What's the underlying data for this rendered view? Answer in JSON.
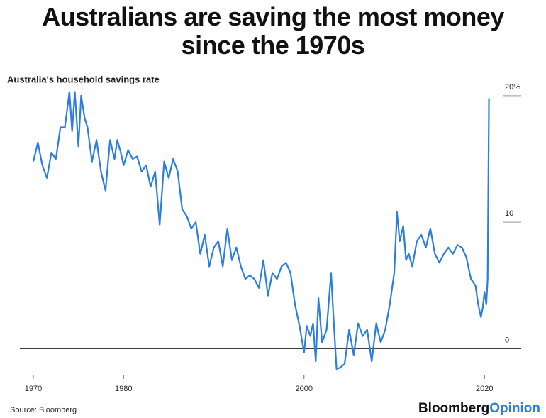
{
  "chart_data": {
    "type": "line",
    "title": "Australians are saving the most money since the 1970s",
    "subtitle": "Australia's household savings rate",
    "source": "Source: Bloomberg",
    "logo": [
      "Bloomberg",
      "Opinion"
    ],
    "xlim": [
      1970,
      2021
    ],
    "xticks": [
      1970,
      1980,
      2000,
      2020
    ],
    "ylim": [
      -2,
      20.5
    ],
    "yticks": [
      0,
      10,
      {
        "value": 20,
        "label": "20%"
      }
    ],
    "grid": true,
    "series": [
      {
        "name": "Australia's household savings rate",
        "color": "#2a7de1",
        "x": [
          1970,
          1970.5,
          1971,
          1971.5,
          1972,
          1972.5,
          1973,
          1973.5,
          1974,
          1974.3,
          1974.6,
          1975,
          1975.3,
          1975.7,
          1976,
          1976.5,
          1977,
          1977.5,
          1978,
          1978.5,
          1979,
          1979.3,
          1979.7,
          1980,
          1980.5,
          1981,
          1981.5,
          1982,
          1982.5,
          1983,
          1983.5,
          1984,
          1984.5,
          1985,
          1985.5,
          1986,
          1986.5,
          1987,
          1987.5,
          1988,
          1988.5,
          1989,
          1989.5,
          1990,
          1990.5,
          1991,
          1991.5,
          1992,
          1992.5,
          1993,
          1993.5,
          1994,
          1994.5,
          1995,
          1995.5,
          1996,
          1996.5,
          1997,
          1997.5,
          1998,
          1998.5,
          1999,
          1999.5,
          2000,
          2000.3,
          2000.7,
          2001,
          2001.3,
          2001.6,
          2002,
          2002.5,
          2003,
          2003.3,
          2003.6,
          2004,
          2004.5,
          2005,
          2005.5,
          2006,
          2006.5,
          2007,
          2007.5,
          2008,
          2008.5,
          2009,
          2009.5,
          2010,
          2010.3,
          2010.6,
          2011,
          2011.3,
          2011.6,
          2012,
          2012.5,
          2013,
          2013.5,
          2014,
          2014.5,
          2015,
          2015.5,
          2016,
          2016.5,
          2017,
          2017.5,
          2018,
          2018.5,
          2019,
          2019.3,
          2019.6,
          2019.8,
          2020,
          2020.2,
          2020.35,
          2020.5
        ],
        "values": [
          14.8,
          16.3,
          14.5,
          13.5,
          15.5,
          15,
          17.5,
          17.5,
          20.3,
          17.2,
          20.3,
          16,
          20,
          18.2,
          17.5,
          14.8,
          16.5,
          14,
          12.5,
          16.5,
          15,
          16.5,
          15.5,
          14.5,
          15.7,
          15,
          15.2,
          14,
          14.5,
          12.8,
          14,
          9.8,
          14.8,
          13.5,
          15,
          14,
          11,
          10.5,
          9.5,
          10,
          7.5,
          9,
          6.5,
          8,
          8.5,
          6.5,
          9.5,
          7,
          8,
          6.5,
          5.5,
          5.8,
          5.5,
          4.8,
          7,
          4.2,
          6,
          5.5,
          6.5,
          6.8,
          6,
          3.5,
          1.8,
          -0.3,
          1.8,
          1,
          2,
          -1,
          4,
          0.5,
          1.5,
          6,
          2,
          -1.6,
          -1.5,
          -1.2,
          1.5,
          -0.5,
          2,
          1,
          1.5,
          -1,
          2,
          0.5,
          1.5,
          3.5,
          6,
          10.8,
          8.5,
          9.7,
          7,
          7.5,
          6.5,
          8.5,
          9,
          8,
          9.5,
          7.5,
          6.8,
          7.5,
          8,
          7.5,
          8.2,
          8,
          7.2,
          5.5,
          5,
          3.5,
          2.5,
          3.2,
          4.5,
          3.5,
          5.5,
          19.8
        ]
      }
    ]
  }
}
